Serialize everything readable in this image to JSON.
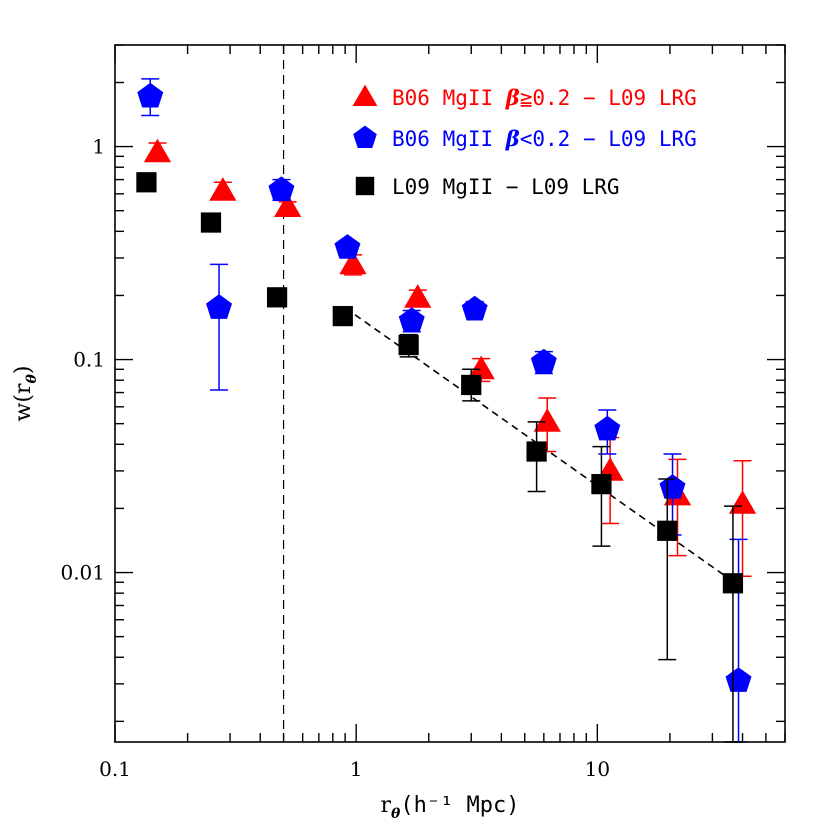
{
  "chart_data": {
    "type": "scatter",
    "title": "",
    "xlabel": {
      "base": "r",
      "sub": "θ",
      "rest": "(h⁻¹ Mpc)"
    },
    "ylabel": {
      "base": "w(r",
      "sub": "θ",
      "rest": ")"
    },
    "x_scale": "log",
    "y_scale": "log",
    "xlim": [
      0.1,
      60
    ],
    "ylim": [
      0.0016,
      3.0
    ],
    "x_ticks": [
      {
        "value": 0.1,
        "label": "0.1"
      },
      {
        "value": 1,
        "label": "1"
      },
      {
        "value": 10,
        "label": "10"
      }
    ],
    "y_ticks": [
      {
        "value": 0.01,
        "label": "0.01"
      },
      {
        "value": 0.1,
        "label": "0.1"
      },
      {
        "value": 1,
        "label": "1"
      }
    ],
    "grid": false,
    "legend_position": "top-right",
    "vertical_line": {
      "x": 0.5,
      "style": "dashed"
    },
    "fit_line": {
      "x": [
        0.9,
        38
      ],
      "y": [
        0.175,
        0.0088
      ],
      "style": "dashed",
      "color": "#000000"
    },
    "series": [
      {
        "name": "B06 MgII β≧0.2 − L09 LRG",
        "legend": {
          "pre": "B06 MgII ",
          "greek": "β",
          "post": "≧0.2 − L09 LRG"
        },
        "marker": "triangle",
        "color": "#ff0000",
        "points": [
          {
            "x": 0.15,
            "y": 0.94,
            "lo": 0.86,
            "hi": 1.04
          },
          {
            "x": 0.28,
            "y": 0.62,
            "lo": 0.57,
            "hi": 0.68
          },
          {
            "x": 0.52,
            "y": 0.52,
            "lo": 0.5,
            "hi": 0.55
          },
          {
            "x": 0.97,
            "y": 0.28,
            "lo": 0.25,
            "hi": 0.31
          },
          {
            "x": 1.8,
            "y": 0.195,
            "lo": 0.178,
            "hi": 0.212
          },
          {
            "x": 3.3,
            "y": 0.09,
            "lo": 0.079,
            "hi": 0.101
          },
          {
            "x": 6.2,
            "y": 0.051,
            "lo": 0.037,
            "hi": 0.066
          },
          {
            "x": 11.3,
            "y": 0.03,
            "lo": 0.017,
            "hi": 0.043
          },
          {
            "x": 21.5,
            "y": 0.023,
            "lo": 0.012,
            "hi": 0.034
          },
          {
            "x": 40,
            "y": 0.021,
            "lo": 0.0096,
            "hi": 0.0335
          }
        ]
      },
      {
        "name": "B06 MgII β<0.2 − L09 LRG",
        "legend": {
          "pre": "B06 MgII ",
          "greek": "β",
          "post": "<0.2 − L09 LRG"
        },
        "marker": "pentagon",
        "color": "#0000ff",
        "points": [
          {
            "x": 0.14,
            "y": 1.72,
            "lo": 1.4,
            "hi": 2.08
          },
          {
            "x": 0.27,
            "y": 0.175,
            "lo": 0.072,
            "hi": 0.28
          },
          {
            "x": 0.49,
            "y": 0.625,
            "lo": 0.56,
            "hi": 0.7
          },
          {
            "x": 0.92,
            "y": 0.335,
            "lo": 0.32,
            "hi": 0.35
          },
          {
            "x": 1.7,
            "y": 0.152,
            "lo": 0.135,
            "hi": 0.17
          },
          {
            "x": 3.1,
            "y": 0.172,
            "lo": 0.158,
            "hi": 0.187
          },
          {
            "x": 6.0,
            "y": 0.097,
            "lo": 0.086,
            "hi": 0.109
          },
          {
            "x": 11.0,
            "y": 0.047,
            "lo": 0.036,
            "hi": 0.058
          },
          {
            "x": 20.5,
            "y": 0.025,
            "lo": 0.015,
            "hi": 0.036
          },
          {
            "x": 38.5,
            "y": 0.0031,
            "lo": 0.0016,
            "hi": 0.0143
          }
        ]
      },
      {
        "name": "L09 MgII − L09 LRG",
        "legend": {
          "pre": "L09 MgII − L09 LRG",
          "greek": "",
          "post": ""
        },
        "marker": "square",
        "color": "#000000",
        "points": [
          {
            "x": 0.135,
            "y": 0.68,
            "lo": 0.64,
            "hi": 0.72
          },
          {
            "x": 0.25,
            "y": 0.44,
            "lo": 0.41,
            "hi": 0.47
          },
          {
            "x": 0.47,
            "y": 0.196,
            "lo": 0.178,
            "hi": 0.214
          },
          {
            "x": 0.88,
            "y": 0.16,
            "lo": 0.149,
            "hi": 0.171
          },
          {
            "x": 1.65,
            "y": 0.117,
            "lo": 0.103,
            "hi": 0.131
          },
          {
            "x": 3.0,
            "y": 0.076,
            "lo": 0.064,
            "hi": 0.09
          },
          {
            "x": 5.6,
            "y": 0.037,
            "lo": 0.024,
            "hi": 0.051
          },
          {
            "x": 10.4,
            "y": 0.026,
            "lo": 0.0133,
            "hi": 0.039
          },
          {
            "x": 19.5,
            "y": 0.0157,
            "lo": 0.0039,
            "hi": 0.0275
          },
          {
            "x": 36.5,
            "y": 0.0089,
            "lo": 0.0016,
            "hi": 0.0205
          }
        ]
      }
    ]
  }
}
